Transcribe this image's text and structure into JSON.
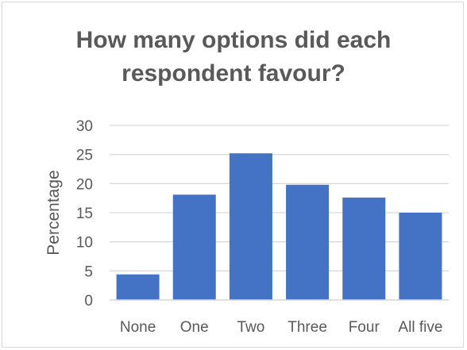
{
  "chart_data": {
    "type": "bar",
    "title_lines": [
      "How many options did each",
      "respondent favour?"
    ],
    "ylabel": "Percentage",
    "xlabel": "",
    "categories": [
      "None",
      "One",
      "Two",
      "Three",
      "Four",
      "All five"
    ],
    "values": [
      4.4,
      18.1,
      25.2,
      19.8,
      17.6,
      15.0
    ],
    "ylim": [
      0,
      30
    ],
    "yticks": [
      "0",
      "5",
      "10",
      "15",
      "20",
      "25",
      "30"
    ],
    "grid": true,
    "bar_color": "#4472c4",
    "grid_color": "#d9d9d9"
  }
}
